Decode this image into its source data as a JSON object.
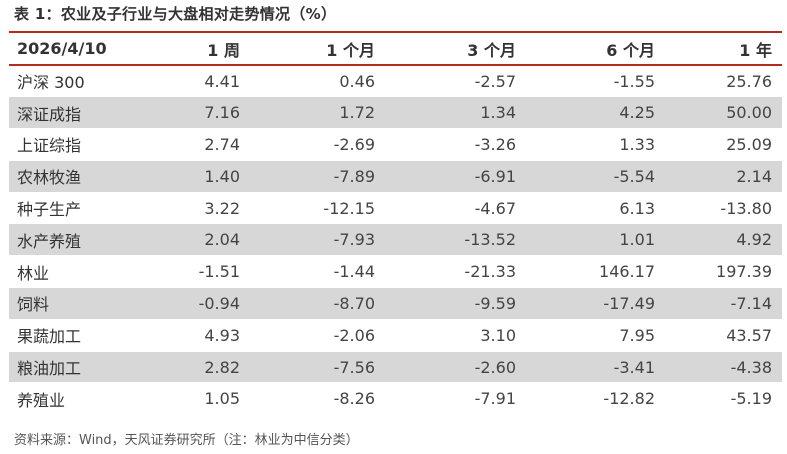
{
  "title": "表 1：农业及子行业与大盘相对走势情况（%）",
  "table": {
    "headers": [
      "2026/4/10",
      "1 周",
      "1 个月",
      "3 个月",
      "6 个月",
      "1 年"
    ],
    "rows": [
      {
        "name": "沪深 300",
        "values": [
          "4.41",
          "0.46",
          "-2.57",
          "-1.55",
          "25.76"
        ]
      },
      {
        "name": "深证成指",
        "values": [
          "7.16",
          "1.72",
          "1.34",
          "4.25",
          "50.00"
        ]
      },
      {
        "name": "上证综指",
        "values": [
          "2.74",
          "-2.69",
          "-3.26",
          "1.33",
          "25.09"
        ]
      },
      {
        "name": "农林牧渔",
        "values": [
          "1.40",
          "-7.89",
          "-6.91",
          "-5.54",
          "2.14"
        ]
      },
      {
        "name": "种子生产",
        "values": [
          "3.22",
          "-12.15",
          "-4.67",
          "6.13",
          "-13.80"
        ]
      },
      {
        "name": "水产养殖",
        "values": [
          "2.04",
          "-7.93",
          "-13.52",
          "1.01",
          "4.92"
        ]
      },
      {
        "name": "林业",
        "values": [
          "-1.51",
          "-1.44",
          "-21.33",
          "146.17",
          "197.39"
        ]
      },
      {
        "name": "饲料",
        "values": [
          "-0.94",
          "-8.70",
          "-9.59",
          "-17.49",
          "-7.14"
        ]
      },
      {
        "name": "果蔬加工",
        "values": [
          "4.93",
          "-2.06",
          "3.10",
          "7.95",
          "43.57"
        ]
      },
      {
        "name": "粮油加工",
        "values": [
          "2.82",
          "-7.56",
          "-2.60",
          "-3.41",
          "-4.38"
        ]
      },
      {
        "name": "养殖业",
        "values": [
          "1.05",
          "-8.26",
          "-7.91",
          "-12.82",
          "-5.19"
        ]
      }
    ]
  },
  "source": "资料来源：Wind，天风证券研究所（注：林业为中信分类）",
  "colors": {
    "rule": "#b32a1f",
    "stripe": "#d7d7d7"
  }
}
